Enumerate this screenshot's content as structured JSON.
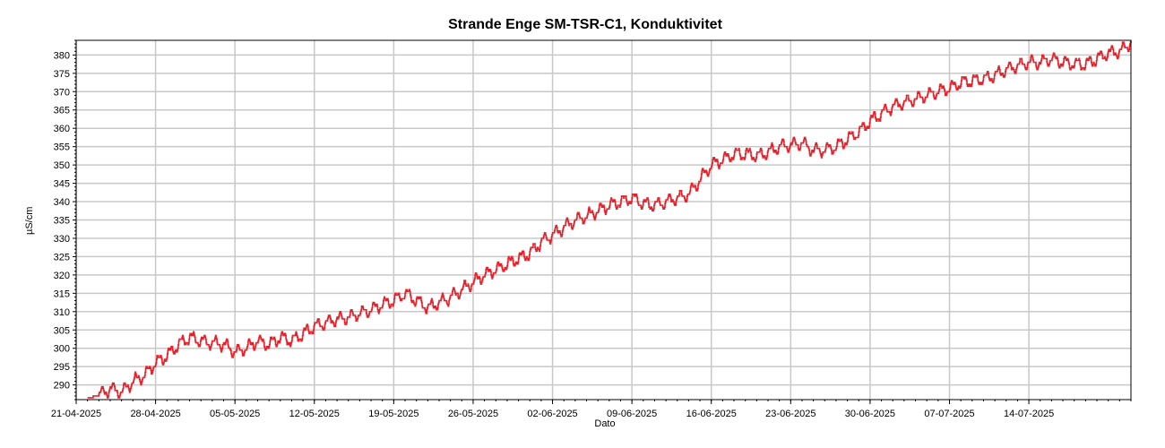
{
  "chart_data": {
    "type": "line",
    "title": "Strande Enge SM-TSR-C1, Konduktivitet",
    "xlabel": "Dato",
    "ylabel": "µS/cm",
    "xlim": [
      "2025-04-21",
      "2025-07-23"
    ],
    "ylim": [
      286,
      384
    ],
    "grid": true,
    "line_color": "#e8202a",
    "x_ticks": [
      "21-04-2025",
      "28-04-2025",
      "05-05-2025",
      "12-05-2025",
      "19-05-2025",
      "26-05-2025",
      "02-06-2025",
      "09-06-2025",
      "16-06-2025",
      "23-06-2025",
      "30-06-2025",
      "07-07-2025",
      "14-07-2025"
    ],
    "y_ticks": [
      290,
      295,
      300,
      305,
      310,
      315,
      320,
      325,
      330,
      335,
      340,
      345,
      350,
      355,
      360,
      365,
      370,
      375,
      380
    ],
    "series": [
      {
        "x": [
          "2025-04-22",
          "2025-04-23",
          "2025-04-24",
          "2025-04-25",
          "2025-04-26",
          "2025-04-27",
          "2025-04-28",
          "2025-04-29",
          "2025-04-30",
          "2025-05-01",
          "2025-05-02",
          "2025-05-03",
          "2025-05-04",
          "2025-05-05",
          "2025-05-06",
          "2025-05-07",
          "2025-05-08",
          "2025-05-09",
          "2025-05-10",
          "2025-05-11",
          "2025-05-12",
          "2025-05-13",
          "2025-05-14",
          "2025-05-15",
          "2025-05-16",
          "2025-05-17",
          "2025-05-18",
          "2025-05-19",
          "2025-05-20",
          "2025-05-21",
          "2025-05-22",
          "2025-05-23",
          "2025-05-24",
          "2025-05-25",
          "2025-05-26",
          "2025-05-27",
          "2025-05-28",
          "2025-05-29",
          "2025-05-30",
          "2025-05-31",
          "2025-06-01",
          "2025-06-02",
          "2025-06-03",
          "2025-06-04",
          "2025-06-05",
          "2025-06-06",
          "2025-06-07",
          "2025-06-08",
          "2025-06-09",
          "2025-06-10",
          "2025-06-11",
          "2025-06-12",
          "2025-06-13",
          "2025-06-14",
          "2025-06-15",
          "2025-06-16",
          "2025-06-17",
          "2025-06-18",
          "2025-06-19",
          "2025-06-20",
          "2025-06-21",
          "2025-06-22",
          "2025-06-23",
          "2025-06-24",
          "2025-06-25",
          "2025-06-26",
          "2025-06-27",
          "2025-06-28",
          "2025-06-29",
          "2025-06-30",
          "2025-07-01",
          "2025-07-02",
          "2025-07-03",
          "2025-07-04",
          "2025-07-05",
          "2025-07-06",
          "2025-07-07",
          "2025-07-08",
          "2025-07-09",
          "2025-07-10",
          "2025-07-11",
          "2025-07-12",
          "2025-07-13",
          "2025-07-14",
          "2025-07-15",
          "2025-07-16",
          "2025-07-17",
          "2025-07-18",
          "2025-07-19",
          "2025-07-20",
          "2025-07-21",
          "2025-07-22",
          "2025-07-23"
        ],
        "y": [
          286.5,
          287.3,
          289,
          288,
          291,
          292.5,
          296,
          298,
          301,
          303,
          302,
          301.5,
          301,
          299,
          300,
          302,
          301,
          303,
          302,
          304,
          306,
          307,
          308,
          308.5,
          309.5,
          310.5,
          312,
          313,
          315,
          313,
          311,
          312.5,
          314,
          316,
          318,
          320,
          321.5,
          323,
          324.5,
          326,
          329,
          331,
          333,
          335,
          336,
          337.5,
          339,
          340,
          341,
          339.5,
          339,
          340,
          341,
          342,
          346,
          350,
          351.5,
          353,
          353,
          352.5,
          353.5,
          355,
          355.5,
          356,
          354,
          354,
          355,
          357,
          359,
          362,
          364,
          366,
          367,
          368,
          369,
          370,
          371,
          372.5,
          373,
          373.5,
          374.5,
          376,
          377,
          378,
          378,
          379,
          378,
          377.5,
          377.5,
          379,
          380.5,
          381,
          383.5
        ]
      }
    ]
  }
}
